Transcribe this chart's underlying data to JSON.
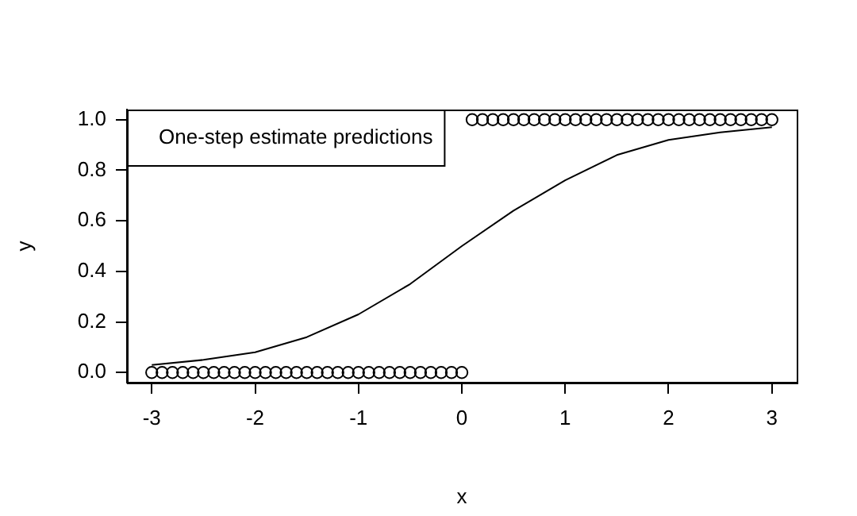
{
  "chart_data": {
    "type": "scatter",
    "xlabel": "x",
    "ylabel": "y",
    "annotations": [
      "One-step estimate predictions"
    ],
    "xlim": [
      -3.24,
      3.24
    ],
    "xticks": [
      -3,
      -2,
      -1,
      0,
      1,
      2,
      3
    ],
    "ylim": [
      -0.04,
      1.04
    ],
    "yticks": [
      {
        "value": 0,
        "label": "0.0"
      },
      {
        "value": 0.2,
        "label": "0.2"
      },
      {
        "value": 0.4,
        "label": "0.4"
      },
      {
        "value": 0.6,
        "label": "0.6"
      },
      {
        "value": 0.8,
        "label": "0.8"
      },
      {
        "value": 1,
        "label": "1.0"
      }
    ],
    "grid": false,
    "legend": false,
    "series": [
      {
        "type": "scatter",
        "marker": "circle",
        "color": "#000000",
        "x": [
          -3,
          -2.9,
          -2.8,
          -2.7,
          -2.6,
          -2.5,
          -2.4,
          -2.3,
          -2.2,
          -2.1,
          -2,
          -1.9,
          -1.8,
          -1.7,
          -1.6,
          -1.5,
          -1.4,
          -1.3,
          -1.2,
          -1.1,
          -1,
          -0.9,
          -0.8,
          -0.7,
          -0.6,
          -0.5,
          -0.4,
          -0.3,
          -0.2,
          -0.1,
          0,
          0.1,
          0.2,
          0.3,
          0.4,
          0.5,
          0.6,
          0.7,
          0.8,
          0.9,
          1,
          1.1,
          1.2,
          1.3,
          1.4,
          1.5,
          1.6,
          1.7,
          1.8,
          1.9,
          2,
          2.1,
          2.2,
          2.3,
          2.4,
          2.5,
          2.6,
          2.7,
          2.8,
          2.9,
          3
        ],
        "values": [
          0,
          0,
          0,
          0,
          0,
          0,
          0,
          0,
          0,
          0,
          0,
          0,
          0,
          0,
          0,
          0,
          0,
          0,
          0,
          0,
          0,
          0,
          0,
          0,
          0,
          0,
          0,
          0,
          0,
          0,
          0,
          1,
          1,
          1,
          1,
          1,
          1,
          1,
          1,
          1,
          1,
          1,
          1,
          1,
          1,
          1,
          1,
          1,
          1,
          1,
          1,
          1,
          1,
          1,
          1,
          1,
          1,
          1,
          1,
          1,
          1
        ]
      },
      {
        "type": "line",
        "marker": "none",
        "color": "#000000",
        "x": [
          -3,
          -2.5,
          -2,
          -1.5,
          -1,
          -0.5,
          0,
          0.5,
          1,
          1.5,
          2,
          2.5,
          3
        ],
        "values": [
          0.03,
          0.05,
          0.08,
          0.14,
          0.23,
          0.35,
          0.5,
          0.64,
          0.76,
          0.86,
          0.92,
          0.95,
          0.97
        ]
      }
    ]
  }
}
